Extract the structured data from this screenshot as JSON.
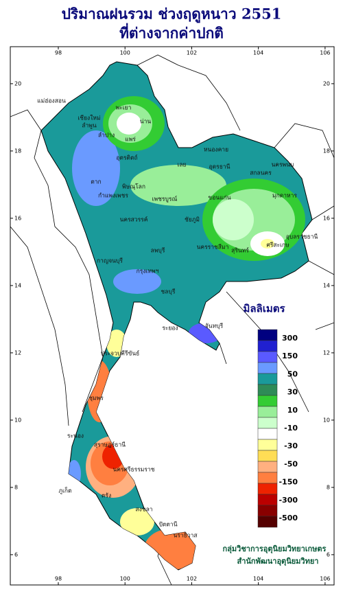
{
  "title": [
    "ปริมาณฝนรวม ช่วงฤดูหนาว 2551",
    "ที่ต่างจากค่าปกติ"
  ],
  "lon_range": [
    96.56,
    106.27
  ],
  "lat_range": [
    21.1,
    5.1
  ],
  "lon_ticks": [
    98,
    100,
    102,
    104,
    106
  ],
  "lat_ticks": [
    6,
    8,
    10,
    12,
    14,
    16,
    18,
    20
  ],
  "legend": {
    "title": "มิลลิเมตร",
    "colors": [
      "#000080",
      "#2020d0",
      "#5a5aff",
      "#6a9aff",
      "#1a9a9a",
      "#2e8b57",
      "#33cc33",
      "#99ee99",
      "#ccffcc",
      "#ffffff",
      "#ffff99",
      "#ffdd55",
      "#ffb080",
      "#ff7f40",
      "#ee2200",
      "#bb0000",
      "#880000",
      "#550000"
    ],
    "labels": [
      300,
      150,
      50,
      30,
      10,
      -10,
      -30,
      -50,
      -150,
      -300,
      -500
    ]
  },
  "places": [
    "แม่ฮ่องสอน",
    "เชียงใหม่",
    "ลำพูน",
    "ลำปาง",
    "พะเยา",
    "น่าน",
    "แพร่",
    "อุตรดิตถ์",
    "ตาก",
    "กำแพงเพชร",
    "พิษณุโลก",
    "เพชรบูรณ์",
    "เลย",
    "หนองคาย",
    "อุดรธานี",
    "สกลนคร",
    "นครพนม",
    "มุกดาหาร",
    "ขอนแก่น",
    "ชัยภูมิ",
    "นครสวรรค์",
    "ลพบุรี",
    "นครราชสีมา",
    "สุรินทร์",
    "ศรีสะเกษ",
    "อุบลราชธานี",
    "กาญจนบุรี",
    "กรุงเทพฯ",
    "ชลบุรี",
    "ระยอง",
    "จันทบุรี",
    "ประจวบคีรีขันธ์",
    "ชุมพร",
    "ระนอง",
    "สุราษฎร์ธานี",
    "นครศรีธรรมราช",
    "ภูเก็ต",
    "ตรัง",
    "สงขลา",
    "ปัตตานี",
    "นราธิวาส"
  ],
  "credit": [
    "กลุ่มวิชาการอุตุนิยมวิทยาเกษตร",
    "สำนักพัฒนาอุตุนิยมวิทยา"
  ]
}
